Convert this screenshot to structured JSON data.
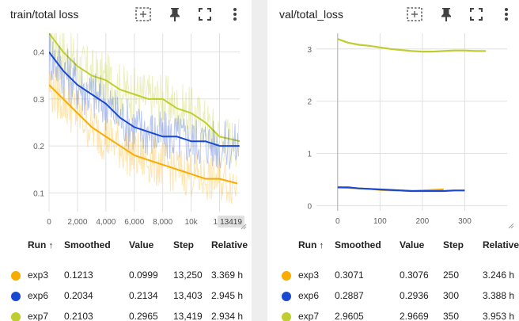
{
  "colors": {
    "exp3": "#f9ab00",
    "exp6": "#1a48ce",
    "exp7": "#c0cd2e",
    "grid": "#e0e0e0",
    "axis": "#757575"
  },
  "icons": [
    "fit-domain-icon",
    "pin-icon",
    "fullscreen-icon",
    "more-vert-icon"
  ],
  "table_header": {
    "run": "Run",
    "sort": "↑",
    "smoothed": "Smoothed",
    "value": "Value",
    "step": "Step",
    "relative": "Relative"
  },
  "cards": [
    {
      "title": "train/total loss",
      "rows": [
        {
          "run": "exp3",
          "smoothed": "0.1213",
          "value": "0.0999",
          "step": "13,250",
          "relative": "3.369 h"
        },
        {
          "run": "exp6",
          "smoothed": "0.2034",
          "value": "0.2134",
          "step": "13,403",
          "relative": "2.945 h"
        },
        {
          "run": "exp7",
          "smoothed": "0.2103",
          "value": "0.2965",
          "step": "13,419",
          "relative": "2.934 h"
        }
      ]
    },
    {
      "title": "val/total_loss",
      "rows": [
        {
          "run": "exp3",
          "smoothed": "0.3071",
          "value": "0.3076",
          "step": "250",
          "relative": "3.246 h"
        },
        {
          "run": "exp6",
          "smoothed": "0.2887",
          "value": "0.2936",
          "step": "300",
          "relative": "3.388 h"
        },
        {
          "run": "exp7",
          "smoothed": "2.9605",
          "value": "2.9669",
          "step": "350",
          "relative": "3.953 h"
        }
      ]
    }
  ],
  "chart_data": [
    {
      "type": "line",
      "title": "train/total loss",
      "xlim": [
        0,
        13419
      ],
      "ylim": [
        0.06,
        0.44
      ],
      "x_ticks": [
        0,
        2000,
        4000,
        6000,
        8000,
        10000,
        12000
      ],
      "x_tick_labels": [
        "0",
        "2,000",
        "4,000",
        "6,000",
        "8,000",
        "10k",
        "12k"
      ],
      "x_edge_label": "13419",
      "y_ticks": [
        0.1,
        0.2,
        0.3,
        0.4
      ],
      "y_tick_labels": [
        "0.1",
        "0.2",
        "0.3",
        "0.4"
      ],
      "grid": true,
      "series": [
        {
          "name": "exp7",
          "x": [
            0,
            1000,
            2000,
            3000,
            4000,
            5000,
            6000,
            7000,
            8000,
            9000,
            10000,
            11000,
            12000,
            13419
          ],
          "values": [
            0.44,
            0.4,
            0.37,
            0.35,
            0.34,
            0.32,
            0.31,
            0.3,
            0.3,
            0.28,
            0.27,
            0.25,
            0.22,
            0.21
          ]
        },
        {
          "name": "exp6",
          "x": [
            0,
            1000,
            2000,
            3000,
            4000,
            5000,
            6000,
            7000,
            8000,
            9000,
            10000,
            11000,
            12000,
            13403
          ],
          "values": [
            0.4,
            0.36,
            0.33,
            0.31,
            0.29,
            0.26,
            0.24,
            0.23,
            0.22,
            0.22,
            0.21,
            0.21,
            0.2,
            0.2
          ]
        },
        {
          "name": "exp3",
          "x": [
            0,
            1000,
            2000,
            3000,
            4000,
            5000,
            6000,
            7000,
            8000,
            9000,
            10000,
            11000,
            12000,
            13250
          ],
          "values": [
            0.33,
            0.3,
            0.27,
            0.24,
            0.22,
            0.2,
            0.18,
            0.17,
            0.16,
            0.15,
            0.14,
            0.13,
            0.13,
            0.12
          ]
        }
      ]
    },
    {
      "type": "line",
      "title": "val/total_loss",
      "xlim": [
        -50,
        400
      ],
      "ylim": [
        -0.1,
        3.3
      ],
      "x_ticks": [
        0,
        100,
        200,
        300
      ],
      "x_tick_labels": [
        "0",
        "100",
        "200",
        "300"
      ],
      "y_ticks": [
        0,
        1,
        2,
        3
      ],
      "y_tick_labels": [
        "0",
        "1",
        "2",
        "3"
      ],
      "grid": true,
      "series": [
        {
          "name": "exp7",
          "x": [
            0,
            25,
            50,
            75,
            100,
            125,
            150,
            175,
            200,
            225,
            250,
            275,
            300,
            325,
            350
          ],
          "values": [
            3.19,
            3.12,
            3.08,
            3.06,
            3.03,
            3.0,
            2.98,
            2.96,
            2.95,
            2.95,
            2.96,
            2.97,
            2.97,
            2.96,
            2.96
          ]
        },
        {
          "name": "exp3",
          "x": [
            0,
            25,
            50,
            75,
            100,
            125,
            150,
            175,
            200,
            225,
            250
          ],
          "values": [
            0.35,
            0.34,
            0.33,
            0.32,
            0.3,
            0.29,
            0.29,
            0.28,
            0.29,
            0.3,
            0.31
          ]
        },
        {
          "name": "exp6",
          "x": [
            0,
            25,
            50,
            75,
            100,
            125,
            150,
            175,
            200,
            225,
            250,
            275,
            300
          ],
          "values": [
            0.35,
            0.35,
            0.33,
            0.32,
            0.31,
            0.3,
            0.29,
            0.28,
            0.28,
            0.28,
            0.28,
            0.29,
            0.29
          ]
        }
      ]
    }
  ]
}
